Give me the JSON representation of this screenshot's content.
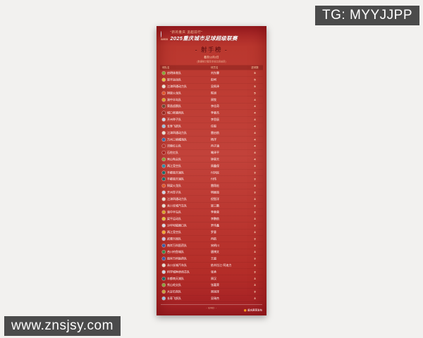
{
  "watermarks": {
    "top_right": "TG: MYYJJPP",
    "bottom_left": "www.znsjsy.com"
  },
  "poster": {
    "slogan": "“新的重庆 追超前行”",
    "title": "2025重庆城市足球超级联赛",
    "badge_label": "渝超联赛",
    "list_title": "- 射手榜 -",
    "date_note": "截至12月2日",
    "sub_note": "(数据统计截至本轮比赛结束)",
    "columns": {
      "team": "球队名",
      "player": "球员名",
      "goals": "进球数"
    },
    "rows": [
      {
        "team": "启明体育队",
        "player": "刘东霖",
        "goals": "5",
        "crest": "#86a637"
      },
      {
        "team": "梁平运动队",
        "player": "彭柯",
        "goals": "5",
        "crest": "#e3c13d"
      },
      {
        "team": "江津四通动力队",
        "player": "吴佩泽",
        "goals": "5",
        "crest": "#e8e2d4"
      },
      {
        "team": "铜梁火龙队",
        "player": "陈旭",
        "goals": "5",
        "crest": "#e25a2d"
      },
      {
        "team": "渝中半岛队",
        "player": "周牧",
        "goals": "4",
        "crest": "#d9a32b"
      },
      {
        "team": "荣昌卤鹅队",
        "player": "李佳奇",
        "goals": "4",
        "crest": "#6b4a36"
      },
      {
        "team": "城口老腊肉队",
        "player": "李睿杰",
        "goals": "4",
        "crest": "#93291f"
      },
      {
        "team": "开州举子队",
        "player": "李思辰",
        "goals": "4",
        "crest": "#cdd6e2"
      },
      {
        "team": "长寿飞跃队",
        "player": "任毅",
        "goals": "4",
        "crest": "#9cc0da"
      },
      {
        "team": "江津四通动力队",
        "player": "雷启航",
        "goals": "4",
        "crest": "#e8e2d4"
      },
      {
        "team": "万州三峡橘海队",
        "player": "杨洋",
        "goals": "4",
        "crest": "#3a6ea6"
      },
      {
        "team": "涪陵红心队",
        "player": "冉子涵",
        "goals": "4",
        "crest": "#b5312a"
      },
      {
        "team": "石柱红队",
        "player": "喻泽平",
        "goals": "4",
        "crest": "#a8241f"
      },
      {
        "team": "秀山毛尖队",
        "player": "钟昊天",
        "goals": "4",
        "crest": "#8aa23c"
      },
      {
        "team": "两江竞空队",
        "player": "周鑫保",
        "goals": "3",
        "crest": "#2f8da6"
      },
      {
        "team": "丰都南天湖队",
        "player": "付洪民",
        "goals": "3",
        "crest": "#1f6b66"
      },
      {
        "team": "丰都南天湖队",
        "player": "付伟",
        "goals": "3",
        "crest": "#1f6b66"
      },
      {
        "team": "铜梁火龙队",
        "player": "雷翔宏",
        "goals": "3",
        "crest": "#e25a2d"
      },
      {
        "team": "开州举子队",
        "player": "明展南",
        "goals": "3",
        "crest": "#cdd6e2"
      },
      {
        "team": "江津四通动力队",
        "player": "倪智洋",
        "goals": "3",
        "crest": "#e8e2d4"
      },
      {
        "team": "永川长城汽车队",
        "player": "梁三鹏",
        "goals": "3",
        "crest": "#e4ded2"
      },
      {
        "team": "渝中半岛队",
        "player": "李章荣",
        "goals": "3",
        "crest": "#d9a32b"
      },
      {
        "team": "梁平运动队",
        "player": "李鹏航",
        "goals": "3",
        "crest": "#e3c13d"
      },
      {
        "team": "沙坪坝磁器口队",
        "player": "罗伟鑫",
        "goals": "3",
        "crest": "#d6dce6"
      },
      {
        "team": "两江竞空队",
        "player": "罗意",
        "goals": "3",
        "crest": "#f0a832"
      },
      {
        "team": "武隆乐园队",
        "player": "冉航",
        "goals": "3",
        "crest": "#c9c2dc"
      },
      {
        "team": "南岸万科医药队",
        "player": "宋柄川",
        "goals": "3",
        "crest": "#3a5fa6"
      },
      {
        "team": "合川钓鱼城队",
        "player": "唐博文",
        "goals": "3",
        "crest": "#3c8a49"
      },
      {
        "team": "南岸万科医药队",
        "player": "王超",
        "goals": "3",
        "crest": "#3a5fa6"
      },
      {
        "team": "永川长城汽车队",
        "player": "依木拉江·阿迪力",
        "goals": "3",
        "crest": "#e4ded2"
      },
      {
        "team": "科学城种质创芯队",
        "player": "张承",
        "goals": "3",
        "crest": "#cfd8df"
      },
      {
        "team": "丰都南天湖队",
        "player": "周汉",
        "goals": "3",
        "crest": "#1f6b66"
      },
      {
        "team": "秀山毛尖队",
        "player": "张嘉荣",
        "goals": "3",
        "crest": "#8aa23c"
      },
      {
        "team": "大足石刻队",
        "player": "周润泽",
        "goals": "3",
        "crest": "#c8a23c"
      },
      {
        "team": "长寿飞跃队",
        "player": "吴瑞杰",
        "goals": "3",
        "crest": "#9cc0da"
      }
    ],
    "footer": {
      "end_text": "- END -",
      "publisher": "重庆赛事发布"
    }
  },
  "colors": {
    "page_background": "#f2f1ef",
    "poster_red": "#c2423a",
    "poster_dark_red": "#a32025",
    "title_dark": "#6e1012",
    "watermark_gray": "#4b4b4b"
  }
}
